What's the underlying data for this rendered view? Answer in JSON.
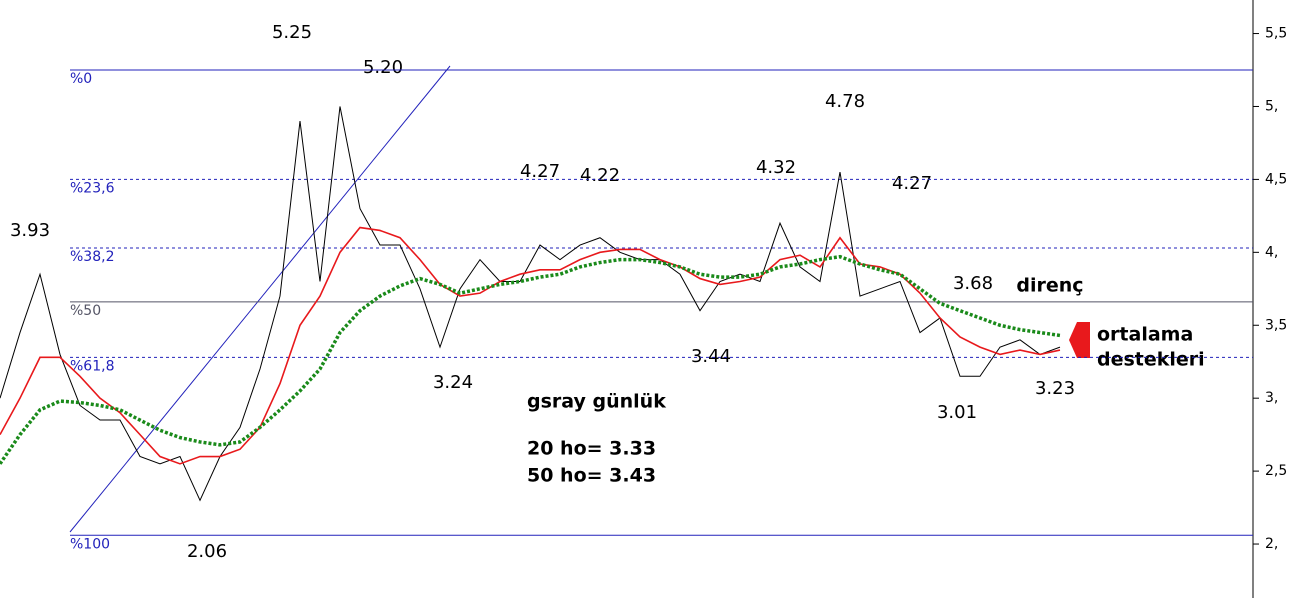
{
  "chart_data": {
    "type": "line",
    "ylim": [
      1.63,
      5.73
    ],
    "yticks": [
      {
        "value": 2,
        "label": "2,"
      },
      {
        "value": 2.5,
        "label": "2,5"
      },
      {
        "value": 3,
        "label": "3,"
      },
      {
        "value": 3.5,
        "label": "3,5"
      },
      {
        "value": 4,
        "label": "4,"
      },
      {
        "value": 4.5,
        "label": "4,5"
      },
      {
        "value": 5,
        "label": "5,"
      },
      {
        "value": 5.5,
        "label": "5,5"
      }
    ],
    "categories": [
      null,
      null,
      null,
      null,
      null,
      null,
      null,
      null,
      null,
      null,
      null,
      null,
      null,
      null,
      null,
      null,
      null,
      null,
      null,
      null,
      null,
      null,
      null,
      null,
      null,
      null,
      null,
      null,
      null,
      null,
      null,
      null,
      null,
      null,
      null,
      null,
      null,
      null,
      null,
      null,
      null,
      null,
      null,
      null,
      null,
      null,
      null,
      null,
      null,
      null,
      null,
      null,
      null,
      null
    ],
    "series": [
      {
        "color": "#000000",
        "style": "solid",
        "values": [
          3.0,
          3.45,
          3.85,
          3.3,
          2.95,
          2.85,
          2.85,
          2.6,
          2.55,
          2.6,
          2.3,
          2.6,
          2.8,
          3.2,
          3.7,
          4.9,
          3.8,
          5.0,
          4.3,
          4.05,
          4.05,
          3.75,
          3.35,
          3.75,
          3.95,
          3.8,
          3.8,
          4.05,
          3.95,
          4.05,
          4.1,
          4.0,
          3.95,
          3.95,
          3.85,
          3.6,
          3.8,
          3.85,
          3.8,
          4.2,
          3.9,
          3.8,
          4.55,
          3.7,
          3.75,
          3.8,
          3.45,
          3.55,
          3.15,
          3.15,
          3.35,
          3.4,
          3.3,
          3.35
        ]
      },
      {
        "color": "#e8191c",
        "style": "solid",
        "values": [
          2.75,
          3.0,
          3.28,
          3.28,
          3.15,
          3.0,
          2.9,
          2.75,
          2.6,
          2.55,
          2.6,
          2.6,
          2.65,
          2.8,
          3.1,
          3.5,
          3.7,
          4.0,
          4.17,
          4.15,
          4.1,
          3.95,
          3.78,
          3.7,
          3.72,
          3.8,
          3.85,
          3.88,
          3.88,
          3.95,
          4.0,
          4.02,
          4.02,
          3.95,
          3.9,
          3.82,
          3.78,
          3.8,
          3.83,
          3.95,
          3.98,
          3.9,
          4.1,
          3.92,
          3.9,
          3.85,
          3.72,
          3.55,
          3.42,
          3.35,
          3.3,
          3.33,
          3.3,
          3.33
        ]
      },
      {
        "color": "#1a8a1a",
        "style": "dotted",
        "values": [
          2.55,
          2.75,
          2.92,
          2.98,
          2.97,
          2.95,
          2.92,
          2.85,
          2.78,
          2.73,
          2.7,
          2.68,
          2.7,
          2.8,
          2.92,
          3.05,
          3.2,
          3.45,
          3.6,
          3.7,
          3.77,
          3.82,
          3.78,
          3.72,
          3.75,
          3.78,
          3.8,
          3.83,
          3.85,
          3.9,
          3.93,
          3.95,
          3.95,
          3.93,
          3.9,
          3.85,
          3.83,
          3.83,
          3.85,
          3.9,
          3.92,
          3.95,
          3.97,
          3.92,
          3.88,
          3.85,
          3.75,
          3.65,
          3.6,
          3.55,
          3.5,
          3.47,
          3.45,
          3.43
        ]
      }
    ],
    "fib_levels": [
      {
        "label": "%0",
        "value": 5.25,
        "color": "#2222bb",
        "style": "solid"
      },
      {
        "label": "%23,6",
        "value": 4.5,
        "color": "#2222bb",
        "style": "dashed"
      },
      {
        "label": "%38,2",
        "value": 4.03,
        "color": "#2222bb",
        "style": "dashed"
      },
      {
        "label": "%50",
        "value": 3.66,
        "color": "#555566",
        "style": "solid"
      },
      {
        "label": "%61,8",
        "value": 3.28,
        "color": "#2222bb",
        "style": "dashed"
      },
      {
        "label": "%100",
        "value": 2.06,
        "color": "#2222bb",
        "style": "solid"
      }
    ],
    "annotations": [
      "5.25",
      "5.20",
      "3.93",
      "4.27",
      "4.22",
      "4.32",
      "4.78",
      "4.27",
      "3.68",
      "direnç",
      "3.44",
      "3.24",
      "3.01",
      "3.23",
      "2.06",
      "gsray günlük",
      "20 ho= 3.33",
      "50 ho= 3.43",
      "ortalama",
      "destekleri"
    ]
  }
}
